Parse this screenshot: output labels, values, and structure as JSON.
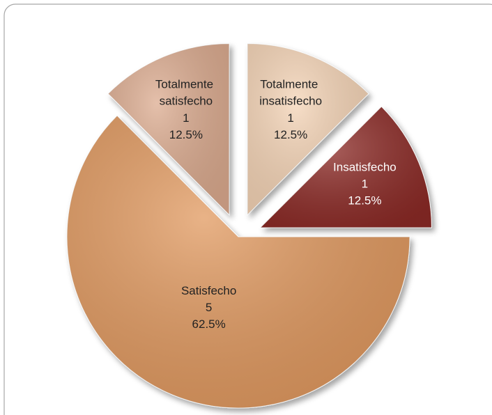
{
  "chart_data": {
    "type": "pie",
    "categories": [
      "Totalmente insatisfecho",
      "Insatisfecho",
      "Satisfecho",
      "Totalmente satisfecho"
    ],
    "values": [
      1,
      1,
      5,
      1
    ],
    "percent_labels": [
      "12.5%",
      "12.5%",
      "62.5%",
      "12.5%"
    ],
    "colors": [
      "#f5d4b6",
      "#8c2b25",
      "#e1995f",
      "#dcab8f"
    ],
    "exploded": [
      true,
      true,
      false,
      true
    ]
  }
}
